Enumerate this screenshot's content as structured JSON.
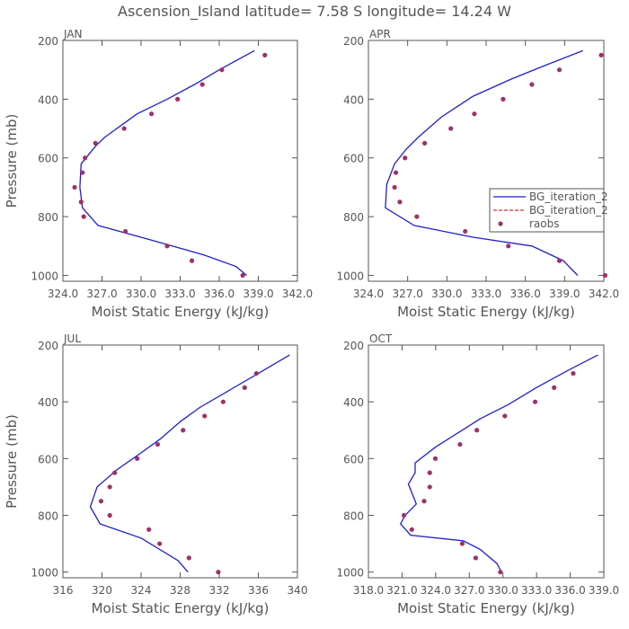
{
  "title": "Ascension_Island  latitude= 7.58 S longitude= 14.24 W",
  "colors": {
    "model": "#1f1fcc",
    "model2": "#cc3333",
    "obs": "#a0306a",
    "axis": "#555555"
  },
  "legend": {
    "panel": "APR",
    "entries": [
      {
        "label": "BG_iteration_2",
        "style": "solid",
        "color": "#1f1fcc"
      },
      {
        "label": "BG_iteration_2",
        "style": "dashed",
        "color": "#cc3333"
      },
      {
        "label": "raobs",
        "style": "marker",
        "color": "#a0306a"
      }
    ]
  },
  "chart_data": [
    {
      "type": "line",
      "panel_title": "JAN",
      "xlabel": "Moist Static Energy (kJ/kg)",
      "ylabel": "Pressure (mb)",
      "xlim": [
        324,
        342
      ],
      "ylim": [
        1020,
        200
      ],
      "xticks": [
        324,
        327,
        330,
        333,
        336,
        339,
        342
      ],
      "xtick_labels": [
        "324.0",
        "327.0",
        "330.0",
        "333.0",
        "336.0",
        "339.0",
        "342.0"
      ],
      "yticks": [
        200,
        400,
        600,
        800,
        1000
      ],
      "ytick_labels": [
        "200",
        "400",
        "600",
        "800",
        "1000"
      ],
      "series": [
        {
          "name": "BG_iteration_2",
          "x": [
            338.7,
            336.0,
            334.1,
            332.0,
            329.7,
            327.2,
            326.5,
            325.4,
            325.3,
            325.5,
            326.7,
            330.8,
            334.8,
            337.3,
            338.1
          ],
          "y": [
            235,
            300,
            350,
            400,
            450,
            530,
            560,
            620,
            700,
            770,
            830,
            880,
            930,
            970,
            1000
          ]
        }
      ],
      "obs": {
        "name": "raobs",
        "x": [
          339.5,
          336.2,
          334.7,
          332.8,
          330.8,
          328.7,
          326.5,
          325.7,
          325.5,
          324.9,
          325.4,
          325.6,
          328.8,
          332.0,
          333.9,
          337.8
        ],
        "y": [
          250,
          300,
          350,
          400,
          450,
          500,
          550,
          600,
          650,
          700,
          750,
          800,
          850,
          900,
          950,
          1000
        ]
      }
    },
    {
      "type": "line",
      "panel_title": "APR",
      "xlabel": "Moist Static Energy (kJ/kg)",
      "ylabel": "",
      "xlim": [
        324,
        342
      ],
      "ylim": [
        1020,
        200
      ],
      "xticks": [
        324,
        327,
        330,
        333,
        336,
        339,
        342
      ],
      "xtick_labels": [
        "324.0",
        "327.0",
        "330.0",
        "333.0",
        "336.0",
        "339.0",
        "342.0"
      ],
      "yticks": [
        200,
        400,
        600,
        800,
        1000
      ],
      "ytick_labels": [
        "200",
        "400",
        "600",
        "800",
        "1000"
      ],
      "series": [
        {
          "name": "BG_iteration_2",
          "x": [
            340.4,
            337.8,
            335.0,
            332.0,
            329.6,
            327.8,
            326.9,
            326.0,
            325.4,
            325.3,
            327.5,
            332.0,
            336.5,
            338.9,
            340.0
          ],
          "y": [
            235,
            280,
            330,
            390,
            460,
            530,
            570,
            620,
            690,
            770,
            830,
            870,
            900,
            950,
            1000
          ]
        }
      ],
      "obs": {
        "name": "raobs",
        "x": [
          341.8,
          338.6,
          336.5,
          334.3,
          332.1,
          330.3,
          328.3,
          326.8,
          326.1,
          326.0,
          326.4,
          327.7,
          331.4,
          334.7,
          338.6,
          342.1
        ],
        "y": [
          250,
          300,
          350,
          400,
          450,
          500,
          550,
          600,
          650,
          700,
          750,
          800,
          850,
          900,
          950,
          1000
        ]
      }
    },
    {
      "type": "line",
      "panel_title": "JUL",
      "xlabel": "Moist Static Energy (kJ/kg)",
      "ylabel": "Pressure (mb)",
      "xlim": [
        316,
        340
      ],
      "ylim": [
        1020,
        200
      ],
      "xticks": [
        316,
        320,
        324,
        328,
        332,
        336,
        340
      ],
      "xtick_labels": [
        "316",
        "320",
        "324",
        "328",
        "332",
        "336",
        "340"
      ],
      "yticks": [
        200,
        400,
        600,
        800,
        1000
      ],
      "ytick_labels": [
        "200",
        "400",
        "600",
        "800",
        "1000"
      ],
      "series": [
        {
          "name": "BG_iteration_2",
          "x": [
            339.2,
            336.0,
            333.0,
            330.0,
            328.0,
            326.0,
            324.0,
            321.5,
            319.5,
            318.8,
            319.8,
            324.0,
            327.8,
            328.8
          ],
          "y": [
            235,
            300,
            360,
            420,
            470,
            530,
            580,
            640,
            700,
            770,
            830,
            880,
            960,
            1000
          ]
        }
      ],
      "obs": {
        "name": "raobs",
        "x": [
          335.8,
          334.6,
          332.4,
          330.5,
          328.3,
          325.7,
          323.6,
          321.3,
          320.8,
          319.9,
          320.8,
          324.8,
          325.9,
          328.9,
          331.9
        ],
        "y": [
          300,
          350,
          400,
          450,
          500,
          550,
          600,
          650,
          700,
          750,
          800,
          850,
          900,
          950,
          1000
        ]
      }
    },
    {
      "type": "line",
      "panel_title": "OCT",
      "xlabel": "Moist Static Energy (kJ/kg)",
      "ylabel": "",
      "xlim": [
        318.03,
        339.03
      ],
      "ylim": [
        1020,
        200
      ],
      "xticks": [
        318.03,
        321.03,
        324.03,
        327.03,
        330.03,
        333.03,
        336.03,
        339.03
      ],
      "xtick_labels": [
        "318.0",
        "321.0",
        "324.0",
        "327.0",
        "330.0",
        "333.0",
        "336.0",
        "339.0"
      ],
      "yticks": [
        200,
        400,
        600,
        800,
        1000
      ],
      "ytick_labels": [
        "200",
        "400",
        "600",
        "800",
        "1000"
      ],
      "series": [
        {
          "name": "BG_iteration_2",
          "x": [
            338.5,
            335.8,
            333.0,
            330.5,
            328.0,
            326.0,
            324.0,
            322.2,
            322.2,
            321.6,
            322.3,
            321.3,
            320.9,
            321.8,
            326.5,
            328.0,
            329.5,
            329.9
          ],
          "y": [
            235,
            290,
            350,
            410,
            460,
            510,
            560,
            615,
            650,
            690,
            760,
            800,
            830,
            870,
            890,
            920,
            970,
            1000
          ]
        }
      ],
      "obs": {
        "name": "raobs",
        "x": [
          336.3,
          334.6,
          332.9,
          330.2,
          327.7,
          326.2,
          324.0,
          323.5,
          323.5,
          323.0,
          321.2,
          321.9,
          326.4,
          327.6,
          329.8
        ],
        "y": [
          300,
          350,
          400,
          450,
          500,
          550,
          600,
          650,
          700,
          750,
          800,
          850,
          900,
          950,
          1000
        ]
      }
    }
  ]
}
